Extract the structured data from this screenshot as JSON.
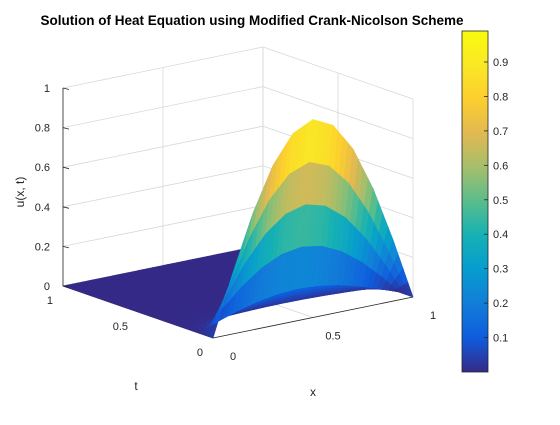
{
  "chart_data": {
    "type": "surface",
    "title": "Solution of Heat Equation using Modified Crank-Nicolson Scheme",
    "xlabel": "x",
    "ylabel": "t",
    "zlabel": "u(x, t)",
    "x_ticks": [
      "0",
      "0.5",
      "1"
    ],
    "y_ticks": [
      "0",
      "0.5",
      "1"
    ],
    "z_ticks": [
      "0",
      "0.2",
      "0.4",
      "0.6",
      "0.8",
      "1"
    ],
    "xlim": [
      0,
      1
    ],
    "ylim": [
      0,
      1
    ],
    "zlim": [
      0,
      1
    ],
    "grid": true,
    "colormap": "parula",
    "colorbar": {
      "ticks": [
        "0.1",
        "0.2",
        "0.3",
        "0.4",
        "0.5",
        "0.6",
        "0.7",
        "0.8",
        "0.9"
      ],
      "range": [
        0.0,
        0.99
      ]
    },
    "x": [
      0,
      0.1,
      0.2,
      0.3,
      0.4,
      0.5,
      0.6,
      0.7,
      0.8,
      0.9,
      1.0
    ],
    "t": [
      0,
      0.1,
      0.2,
      0.3,
      0.4,
      0.5,
      0.6,
      0.7,
      0.8,
      0.9,
      1.0
    ],
    "u_at_t0": [
      0,
      0.31,
      0.59,
      0.81,
      0.95,
      1.0,
      0.95,
      0.81,
      0.59,
      0.31,
      0
    ],
    "decay": [
      1,
      0.12,
      0.02,
      0.003,
      0.0005,
      0.0001,
      0,
      0,
      0,
      0,
      0
    ]
  }
}
